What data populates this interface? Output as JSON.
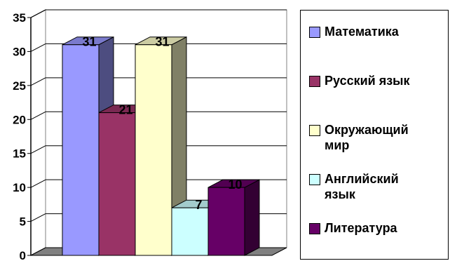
{
  "chart_data": {
    "type": "bar",
    "categories": [
      "Математика",
      "Русский язык",
      "Окружающий мир",
      "Английский язык",
      "Литература"
    ],
    "values": [
      31,
      21,
      31,
      7,
      10
    ],
    "colors": [
      "#9999ff",
      "#993366",
      "#ffffcc",
      "#ccffff",
      "#660066"
    ],
    "title": "",
    "xlabel": "",
    "ylabel": "",
    "ylim": [
      0,
      35
    ],
    "yticks": [
      0,
      5,
      10,
      15,
      20,
      25,
      30,
      35
    ],
    "grid": true,
    "legend_position": "right",
    "data_labels": [
      "31",
      "21",
      "31",
      "7",
      "10"
    ]
  }
}
